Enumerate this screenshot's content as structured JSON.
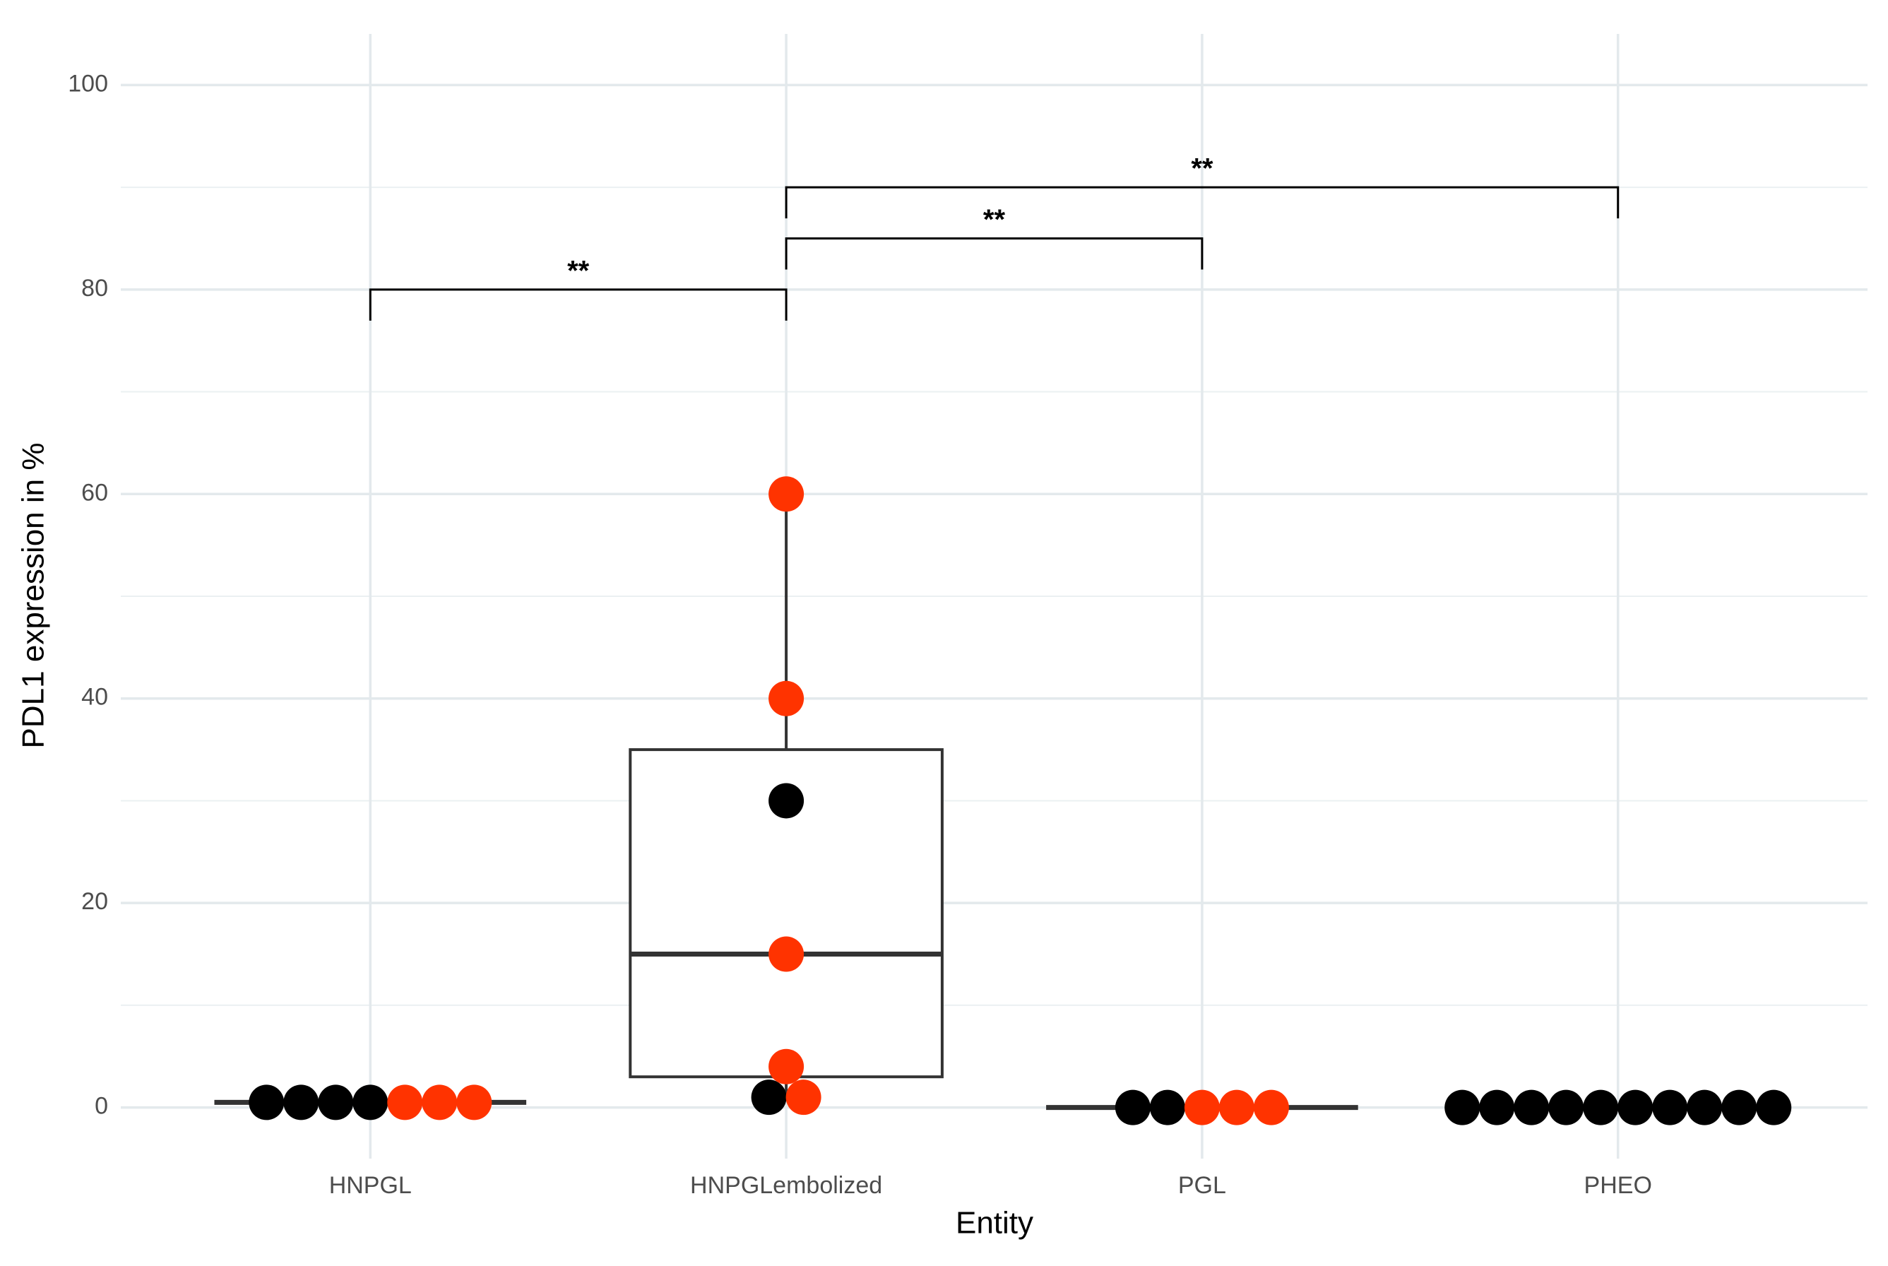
{
  "chart_data": {
    "type": "box",
    "x_label": "Entity",
    "y_label": "PDL1 expression in %",
    "categories": [
      "HNPGL",
      "HNPGLembolized",
      "PGL",
      "PHEO"
    ],
    "boxes": [
      {
        "min": 0.5,
        "q1": 0.5,
        "median": 0.5,
        "q3": 0.5,
        "max": 0.5
      },
      {
        "min": 1,
        "q1": 3,
        "median": 15,
        "q3": 35,
        "max": 60
      },
      {
        "min": 0,
        "q1": 0,
        "median": 0,
        "q3": 0,
        "max": 0
      },
      {
        "min": 0,
        "q1": 0,
        "median": 0,
        "q3": 0,
        "max": 0
      }
    ],
    "points": [
      [
        0.5,
        0.5,
        0.5,
        0.5,
        0.5,
        0.5,
        0.5
      ],
      [
        60,
        40,
        30,
        15,
        4,
        1,
        1
      ],
      [
        0,
        0,
        0,
        0,
        0
      ],
      [
        0,
        0,
        0,
        0,
        0,
        0,
        0,
        0,
        0,
        0
      ]
    ],
    "point_colors": [
      [
        "#000000",
        "#000000",
        "#000000",
        "#000000",
        "#ff3300",
        "#ff3300",
        "#ff3300"
      ],
      [
        "#ff3300",
        "#ff3300",
        "#000000",
        "#ff3300",
        "#ff3300",
        "#000000",
        "#ff3300"
      ],
      [
        "#000000",
        "#000000",
        "#ff3300",
        "#ff3300",
        "#ff3300"
      ],
      [
        "#000000",
        "#000000",
        "#000000",
        "#000000",
        "#000000",
        "#000000",
        "#000000",
        "#000000",
        "#000000",
        "#000000"
      ]
    ],
    "comparisons": [
      {
        "pair": [
          0,
          1
        ],
        "y": 80,
        "label": "**"
      },
      {
        "pair": [
          1,
          2
        ],
        "y": 85,
        "label": "**"
      },
      {
        "pair": [
          1,
          3
        ],
        "y": 90,
        "label": "**"
      }
    ],
    "ylim": [
      -5,
      105
    ],
    "yticks": [
      0,
      20,
      40,
      60,
      80,
      100
    ],
    "minor_yticks": [
      10,
      30,
      50,
      70,
      90
    ],
    "grid": true
  }
}
